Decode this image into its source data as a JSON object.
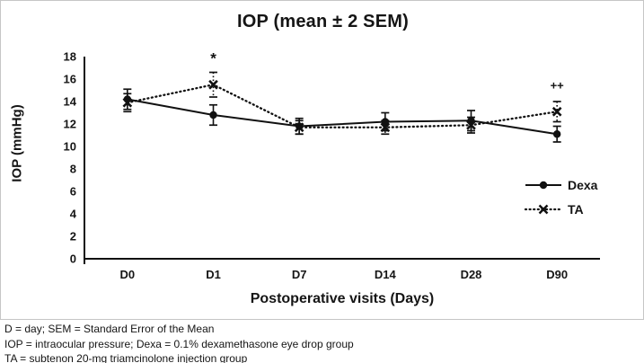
{
  "chart_data": {
    "type": "line",
    "title": "IOP (mean ± 2 SEM)",
    "xlabel": "Postoperative visits (Days)",
    "ylabel": "IOP (mmHg)",
    "ylim": [
      0,
      18
    ],
    "ytick_step": 2,
    "grid": false,
    "legend_position": "middle-right",
    "categories": [
      "D0",
      "D1",
      "D7",
      "D14",
      "D28",
      "D90"
    ],
    "series": [
      {
        "name": "Dexa",
        "line_style": "solid",
        "marker": "circle",
        "values": [
          14.2,
          12.8,
          11.8,
          12.2,
          12.3,
          11.1
        ],
        "error_2sem": [
          0.9,
          0.9,
          0.7,
          0.8,
          0.9,
          0.7
        ]
      },
      {
        "name": "TA",
        "line_style": "dotted",
        "marker": "x",
        "values": [
          13.9,
          15.5,
          11.7,
          11.7,
          11.9,
          13.1
        ],
        "error_2sem": [
          0.8,
          1.1,
          0.6,
          0.6,
          0.7,
          0.9
        ]
      }
    ],
    "annotations": [
      {
        "text": "*",
        "category": "D1",
        "y": 17.8
      },
      {
        "text": "++",
        "category": "D90",
        "y": 15.5
      }
    ]
  },
  "footnotes": [
    "D = day; SEM = Standard Error of the Mean",
    "IOP = intraocular pressure; Dexa = 0.1% dexamethasone eye drop group",
    "TA = subtenon 20-mg triamcinolone injection group"
  ],
  "colors": {
    "series": "#111111",
    "text": "#151515",
    "border": "#c6c6c6",
    "background": "#ffffff"
  }
}
